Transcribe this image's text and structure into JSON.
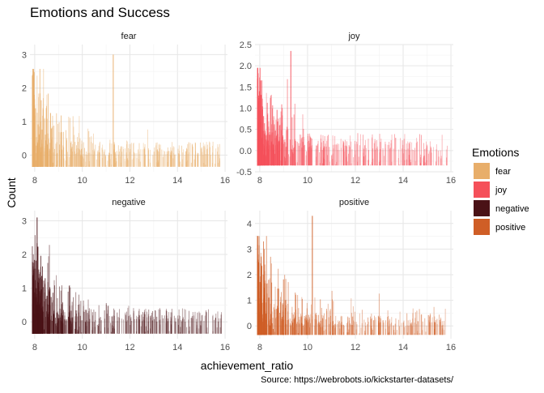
{
  "chart_data": {
    "type": "bar",
    "title": "Emotions and Success",
    "xlabel": "achievement_ratio",
    "ylabel": "Count",
    "caption": "Source: https://webrobots.io/kickstarter-datasets/",
    "xlim": [
      7.8,
      16.1
    ],
    "x_ticks": [
      8,
      10,
      12,
      14,
      16
    ],
    "grid": true,
    "legend": {
      "title": "Emotions",
      "position": "right",
      "entries": [
        {
          "label": "fear",
          "color": "#E8AE6A"
        },
        {
          "label": "joy",
          "color": "#F5505A"
        },
        {
          "label": "negative",
          "color": "#4A1216"
        },
        {
          "label": "positive",
          "color": "#CF5E26"
        }
      ]
    },
    "panels": [
      {
        "strip": "fear",
        "color": "#E8AE6A",
        "ylim": [
          -0.5,
          3.3
        ],
        "y_ticks": [
          0,
          1,
          2,
          3
        ],
        "peak_y": 3.0,
        "peak_x": 11.3
      },
      {
        "strip": "joy",
        "color": "#F5505A",
        "ylim": [
          -0.5,
          2.5
        ],
        "y_ticks": [
          -0.5,
          0.0,
          0.5,
          1.0,
          1.5,
          2.0,
          2.5
        ],
        "peak_y": 2.35,
        "peak_x": 9.3
      },
      {
        "strip": "negative",
        "color": "#4A1216",
        "ylim": [
          -0.5,
          3.3
        ],
        "y_ticks": [
          0,
          1,
          2,
          3
        ],
        "peak_y": 3.1,
        "peak_x": 8.1
      },
      {
        "strip": "positive",
        "color": "#CF5E26",
        "ylim": [
          -0.5,
          4.5
        ],
        "y_ticks": [
          0,
          1,
          2,
          3,
          4
        ],
        "peak_y": 4.3,
        "peak_x": 10.2
      }
    ]
  }
}
